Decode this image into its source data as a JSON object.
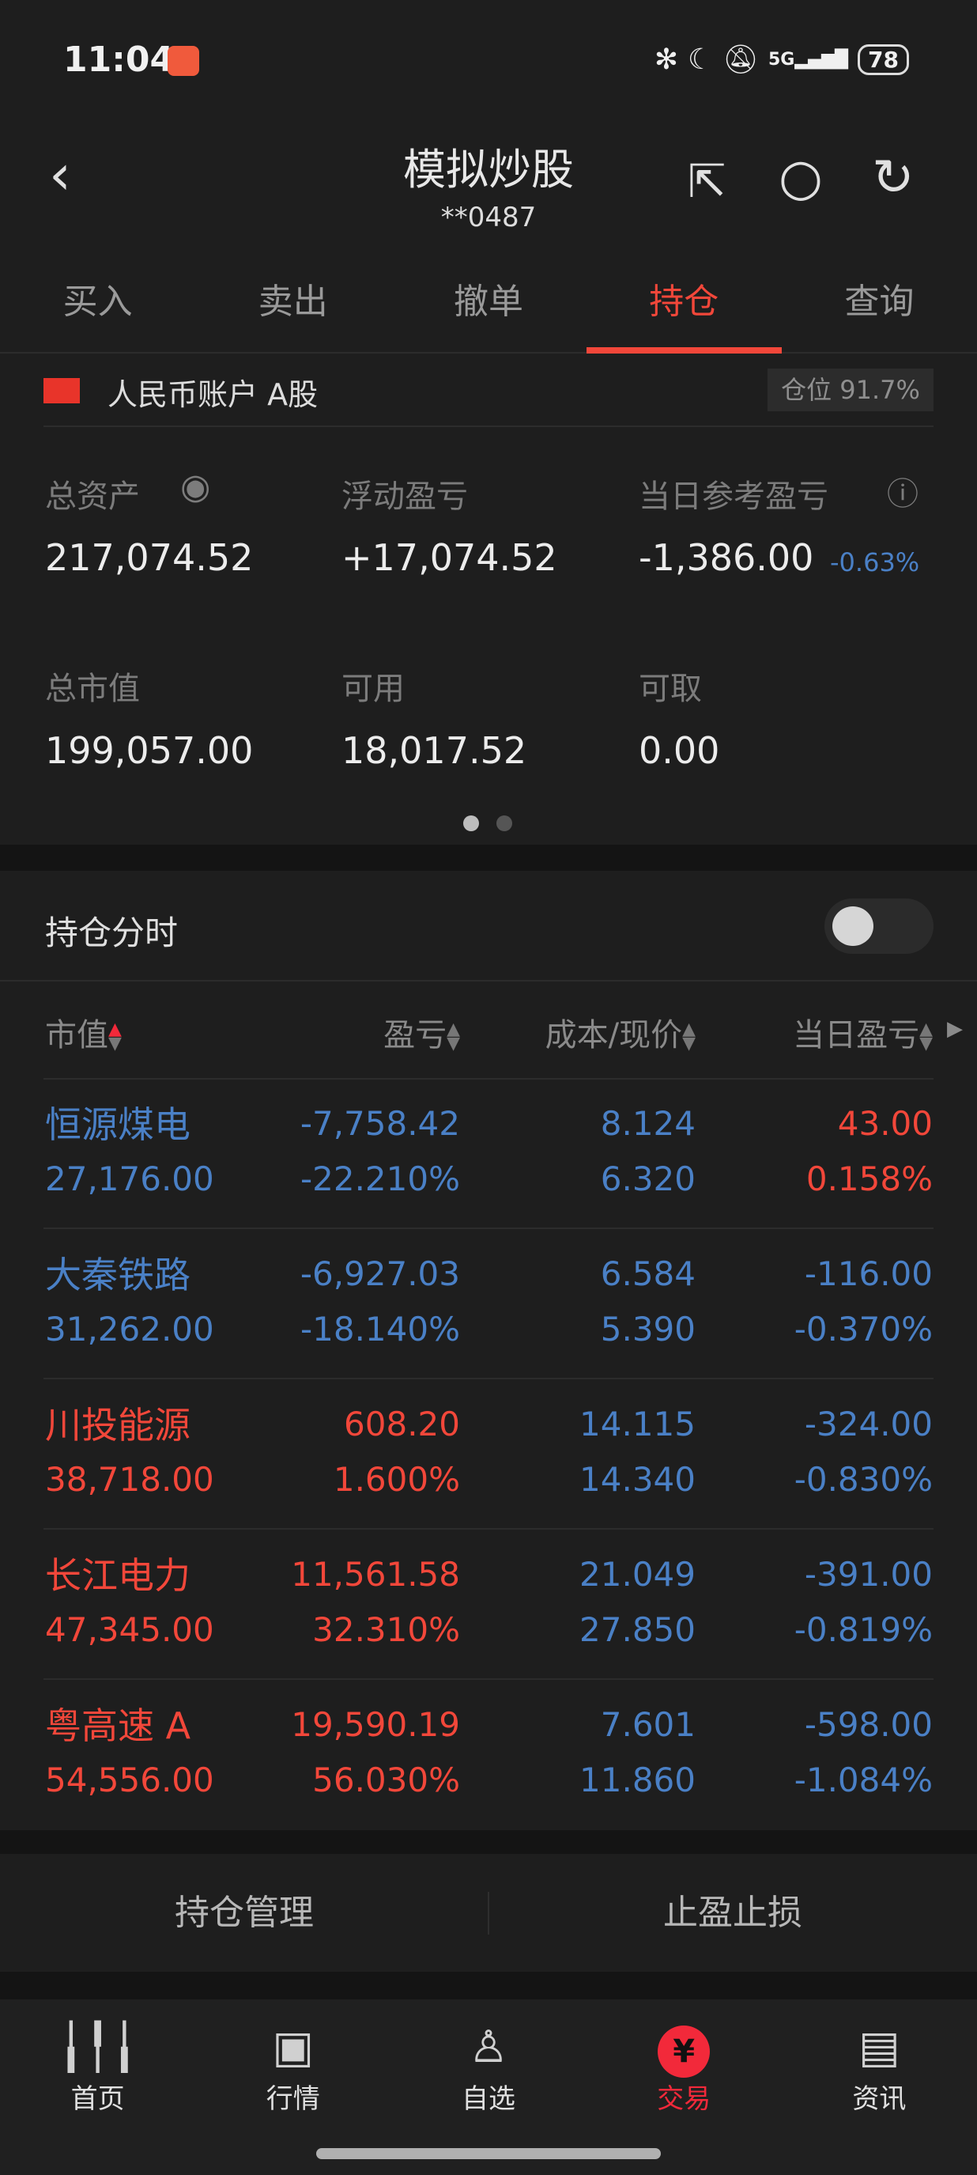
{
  "status_bar": {
    "time": "11:04",
    "signal": "5G",
    "battery": "78"
  },
  "header": {
    "title": "模拟炒股",
    "account": "**0487"
  },
  "tabs": [
    {
      "label": "买入"
    },
    {
      "label": "卖出"
    },
    {
      "label": "撤单"
    },
    {
      "label": "持仓",
      "active": true
    },
    {
      "label": "查询"
    }
  ],
  "account": {
    "name": "人民币账户 A股",
    "position": "仓位 91.7%"
  },
  "summary": {
    "total_assets_label": "总资产",
    "total_assets": "217,074.52",
    "float_pl_label": "浮动盈亏",
    "float_pl": "+17,074.52",
    "day_pl_label": "当日参考盈亏",
    "day_pl": "-1,386.00",
    "day_pl_pct": "-0.63%",
    "market_value_label": "总市值",
    "market_value": "199,057.00",
    "available_label": "可用",
    "available": "18,017.52",
    "withdrawable_label": "可取",
    "withdrawable": "0.00"
  },
  "pager": {
    "pages": 2,
    "current": 1
  },
  "holding_chart": {
    "label": "持仓分时",
    "enabled": false
  },
  "columns": {
    "market_value": "市值",
    "pl": "盈亏",
    "cost_price": "成本/现价",
    "day_pl": "当日盈亏"
  },
  "holdings": [
    {
      "name": "恒源煤电",
      "value": "27,176.00",
      "pl": "-7,758.42",
      "pl_pct": "-22.210%",
      "cost": "8.124",
      "price": "6.320",
      "day_pl": "43.00",
      "day_pct": "0.158%",
      "name_color": "blue",
      "pl_color": "blue",
      "day_color": "red"
    },
    {
      "name": "大秦铁路",
      "value": "31,262.00",
      "pl": "-6,927.03",
      "pl_pct": "-18.140%",
      "cost": "6.584",
      "price": "5.390",
      "day_pl": "-116.00",
      "day_pct": "-0.370%",
      "name_color": "blue",
      "pl_color": "blue",
      "day_color": "blue"
    },
    {
      "name": "川投能源",
      "value": "38,718.00",
      "pl": "608.20",
      "pl_pct": "1.600%",
      "cost": "14.115",
      "price": "14.340",
      "day_pl": "-324.00",
      "day_pct": "-0.830%",
      "name_color": "red",
      "pl_color": "red",
      "day_color": "blue"
    },
    {
      "name": "长江电力",
      "value": "47,345.00",
      "pl": "11,561.58",
      "pl_pct": "32.310%",
      "cost": "21.049",
      "price": "27.850",
      "day_pl": "-391.00",
      "day_pct": "-0.819%",
      "name_color": "red",
      "pl_color": "red",
      "day_color": "blue"
    },
    {
      "name": "粤高速 A",
      "value": "54,556.00",
      "pl": "19,590.19",
      "pl_pct": "56.030%",
      "cost": "7.601",
      "price": "11.860",
      "day_pl": "-598.00",
      "day_pct": "-1.084%",
      "name_color": "red",
      "pl_color": "red",
      "day_color": "blue"
    }
  ],
  "actions": {
    "manage": "持仓管理",
    "stop": "止盈止损"
  },
  "bottom_nav": [
    {
      "label": "首页",
      "icon": "candlestick-icon"
    },
    {
      "label": "行情",
      "icon": "chart-icon"
    },
    {
      "label": "自选",
      "icon": "person-check-icon"
    },
    {
      "label": "交易",
      "icon": "yen-icon",
      "active": true
    },
    {
      "label": "资讯",
      "icon": "document-icon"
    }
  ],
  "colors": {
    "up": "#f2473a",
    "down": "#4a80c6",
    "background": "#1e1e1e"
  }
}
